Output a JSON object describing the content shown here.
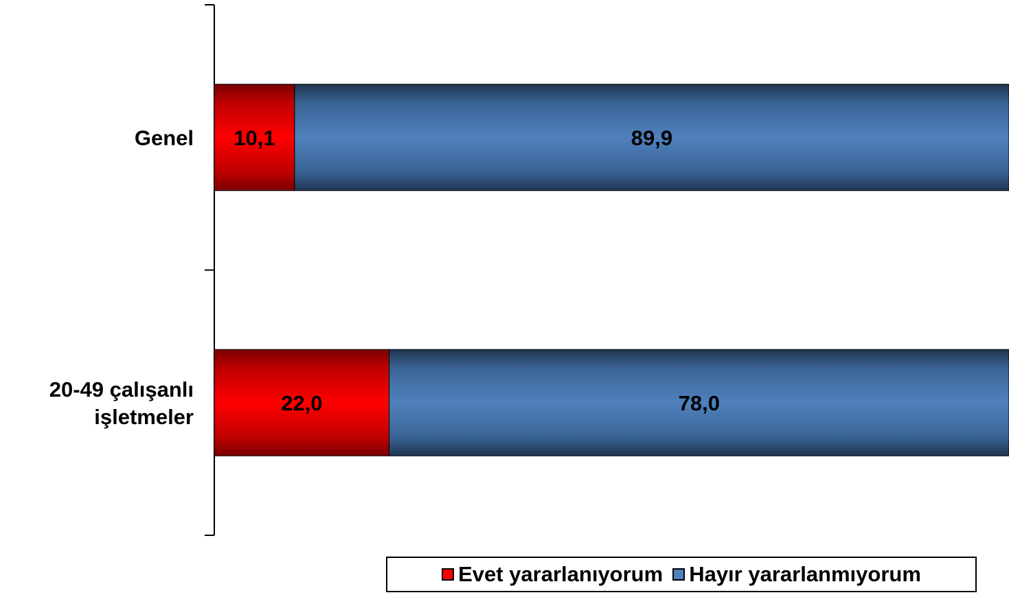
{
  "chart_data": {
    "type": "bar",
    "orientation": "horizontal",
    "stacked": true,
    "percent": true,
    "categories": [
      [
        "Genel"
      ],
      [
        "20-49 çalışanlı",
        "işletmeler"
      ]
    ],
    "series": [
      {
        "name": "Evet yararlanıyorum",
        "values": [
          10.1,
          22.0
        ],
        "labels": [
          "10,1",
          "22,0"
        ],
        "color": "#e00000"
      },
      {
        "name": "Hayır yararlanmıyorum",
        "values": [
          89.9,
          78.0
        ],
        "labels": [
          "89,9",
          "78,0"
        ],
        "color": "#4f81bd"
      }
    ],
    "xlim": [
      0,
      100
    ],
    "grid": false,
    "legend_position": "bottom-right"
  }
}
